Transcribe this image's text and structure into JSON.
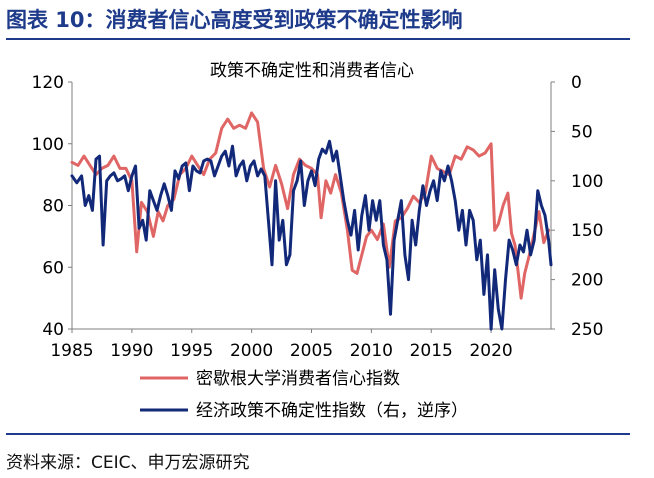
{
  "figure": {
    "title": "图表 10：消费者信心高度受到政策不确定性影响",
    "source": "资料来源：CEIC、申万宏源研究"
  },
  "chart_data": {
    "type": "line",
    "title": "政策不确定性和消费者信心",
    "x_ticks": [
      "1985",
      "1990",
      "1995",
      "2000",
      "2005",
      "2010",
      "2015",
      "2020"
    ],
    "xlim": [
      1985,
      2025
    ],
    "y_left": {
      "ylim": [
        40,
        120
      ],
      "ticks": [
        "40",
        "60",
        "80",
        "100",
        "120"
      ]
    },
    "y_right": {
      "ylim": [
        0,
        250
      ],
      "inverted": true,
      "ticks": [
        "0",
        "50",
        "100",
        "150",
        "200",
        "250"
      ]
    },
    "legend_position": "bottom",
    "series": [
      {
        "name": "密歇根大学消费者信心指数",
        "axis": "left",
        "color": "#e06666",
        "points": [
          [
            1985.0,
            94
          ],
          [
            1985.5,
            93
          ],
          [
            1986.0,
            96
          ],
          [
            1986.5,
            93
          ],
          [
            1987.0,
            90
          ],
          [
            1987.5,
            92
          ],
          [
            1988.0,
            93
          ],
          [
            1988.5,
            96
          ],
          [
            1989.0,
            92
          ],
          [
            1989.5,
            92
          ],
          [
            1990.0,
            88
          ],
          [
            1990.4,
            65
          ],
          [
            1990.8,
            81
          ],
          [
            1991.3,
            78
          ],
          [
            1991.8,
            70
          ],
          [
            1992.2,
            78
          ],
          [
            1992.6,
            75
          ],
          [
            1993.0,
            80
          ],
          [
            1993.5,
            82
          ],
          [
            1994.0,
            90
          ],
          [
            1994.5,
            92
          ],
          [
            1995.0,
            96
          ],
          [
            1995.5,
            93
          ],
          [
            1996.0,
            90
          ],
          [
            1996.5,
            95
          ],
          [
            1997.0,
            97
          ],
          [
            1997.5,
            105
          ],
          [
            1998.0,
            108
          ],
          [
            1998.5,
            105
          ],
          [
            1999.0,
            106
          ],
          [
            1999.5,
            105
          ],
          [
            2000.0,
            110
          ],
          [
            2000.5,
            107
          ],
          [
            2001.0,
            92
          ],
          [
            2001.5,
            86
          ],
          [
            2002.0,
            93
          ],
          [
            2002.5,
            87
          ],
          [
            2003.0,
            79
          ],
          [
            2003.5,
            90
          ],
          [
            2004.0,
            95
          ],
          [
            2004.5,
            93
          ],
          [
            2005.0,
            92
          ],
          [
            2005.5,
            90
          ],
          [
            2005.8,
            76
          ],
          [
            2006.2,
            88
          ],
          [
            2006.6,
            84
          ],
          [
            2007.0,
            90
          ],
          [
            2007.5,
            84
          ],
          [
            2008.0,
            72
          ],
          [
            2008.4,
            59
          ],
          [
            2008.8,
            58
          ],
          [
            2009.2,
            64
          ],
          [
            2009.6,
            70
          ],
          [
            2010.0,
            72
          ],
          [
            2010.5,
            69
          ],
          [
            2011.0,
            74
          ],
          [
            2011.5,
            60
          ],
          [
            2012.0,
            75
          ],
          [
            2012.5,
            76
          ],
          [
            2013.0,
            79
          ],
          [
            2013.5,
            83
          ],
          [
            2014.0,
            81
          ],
          [
            2014.5,
            84
          ],
          [
            2015.0,
            96
          ],
          [
            2015.5,
            92
          ],
          [
            2016.0,
            91
          ],
          [
            2016.5,
            90
          ],
          [
            2017.0,
            96
          ],
          [
            2017.5,
            95
          ],
          [
            2018.0,
            99
          ],
          [
            2018.5,
            98
          ],
          [
            2019.0,
            96
          ],
          [
            2019.5,
            97
          ],
          [
            2020.0,
            100
          ],
          [
            2020.3,
            72
          ],
          [
            2020.6,
            74
          ],
          [
            2021.0,
            80
          ],
          [
            2021.4,
            84
          ],
          [
            2021.7,
            71
          ],
          [
            2022.0,
            67
          ],
          [
            2022.5,
            50
          ],
          [
            2022.8,
            58
          ],
          [
            2023.2,
            64
          ],
          [
            2023.6,
            71
          ],
          [
            2024.0,
            78
          ],
          [
            2024.4,
            68
          ],
          [
            2024.8,
            72
          ]
        ]
      },
      {
        "name": "经济政策不确定性指数（右，逆序）",
        "axis": "right",
        "color": "#12297a",
        "points": [
          [
            1985.0,
            95
          ],
          [
            1985.4,
            102
          ],
          [
            1985.8,
            95
          ],
          [
            1986.1,
            125
          ],
          [
            1986.4,
            115
          ],
          [
            1986.7,
            130
          ],
          [
            1987.0,
            78
          ],
          [
            1987.3,
            75
          ],
          [
            1987.6,
            165
          ],
          [
            1987.9,
            100
          ],
          [
            1988.2,
            95
          ],
          [
            1988.5,
            92
          ],
          [
            1988.8,
            100
          ],
          [
            1989.1,
            98
          ],
          [
            1989.4,
            95
          ],
          [
            1989.7,
            110
          ],
          [
            1990.0,
            95
          ],
          [
            1990.3,
            85
          ],
          [
            1990.6,
            148
          ],
          [
            1990.9,
            140
          ],
          [
            1991.2,
            160
          ],
          [
            1991.5,
            110
          ],
          [
            1991.8,
            120
          ],
          [
            1992.1,
            130
          ],
          [
            1992.4,
            115
          ],
          [
            1992.7,
            103
          ],
          [
            1993.0,
            115
          ],
          [
            1993.3,
            130
          ],
          [
            1993.6,
            90
          ],
          [
            1993.9,
            98
          ],
          [
            1994.2,
            85
          ],
          [
            1994.5,
            82
          ],
          [
            1994.8,
            110
          ],
          [
            1995.1,
            85
          ],
          [
            1995.4,
            90
          ],
          [
            1995.7,
            92
          ],
          [
            1996.0,
            80
          ],
          [
            1996.3,
            78
          ],
          [
            1996.6,
            80
          ],
          [
            1996.9,
            95
          ],
          [
            1997.2,
            85
          ],
          [
            1997.5,
            75
          ],
          [
            1997.8,
            70
          ],
          [
            1998.1,
            85
          ],
          [
            1998.4,
            65
          ],
          [
            1998.7,
            95
          ],
          [
            1999.0,
            85
          ],
          [
            1999.3,
            80
          ],
          [
            1999.6,
            100
          ],
          [
            1999.9,
            85
          ],
          [
            2000.2,
            80
          ],
          [
            2000.5,
            95
          ],
          [
            2000.8,
            88
          ],
          [
            2001.1,
            95
          ],
          [
            2001.4,
            140
          ],
          [
            2001.7,
            185
          ],
          [
            2002.0,
            100
          ],
          [
            2002.3,
            160
          ],
          [
            2002.6,
            140
          ],
          [
            2002.9,
            185
          ],
          [
            2003.2,
            175
          ],
          [
            2003.5,
            110
          ],
          [
            2003.8,
            100
          ],
          [
            2004.1,
            80
          ],
          [
            2004.4,
            125
          ],
          [
            2004.7,
            100
          ],
          [
            2005.0,
            90
          ],
          [
            2005.3,
            105
          ],
          [
            2005.6,
            78
          ],
          [
            2005.9,
            68
          ],
          [
            2006.2,
            72
          ],
          [
            2006.5,
            60
          ],
          [
            2006.8,
            80
          ],
          [
            2007.1,
            70
          ],
          [
            2007.4,
            95
          ],
          [
            2007.7,
            120
          ],
          [
            2008.0,
            140
          ],
          [
            2008.3,
            155
          ],
          [
            2008.6,
            130
          ],
          [
            2008.9,
            170
          ],
          [
            2009.2,
            135
          ],
          [
            2009.5,
            115
          ],
          [
            2009.8,
            150
          ],
          [
            2010.1,
            120
          ],
          [
            2010.4,
            140
          ],
          [
            2010.7,
            120
          ],
          [
            2011.0,
            165
          ],
          [
            2011.3,
            180
          ],
          [
            2011.6,
            235
          ],
          [
            2011.9,
            160
          ],
          [
            2012.2,
            140
          ],
          [
            2012.5,
            120
          ],
          [
            2012.8,
            175
          ],
          [
            2013.1,
            200
          ],
          [
            2013.4,
            140
          ],
          [
            2013.7,
            165
          ],
          [
            2014.0,
            130
          ],
          [
            2014.3,
            105
          ],
          [
            2014.6,
            125
          ],
          [
            2014.9,
            110
          ],
          [
            2015.2,
            100
          ],
          [
            2015.5,
            120
          ],
          [
            2015.8,
            90
          ],
          [
            2016.1,
            100
          ],
          [
            2016.4,
            85
          ],
          [
            2016.7,
            100
          ],
          [
            2017.0,
            120
          ],
          [
            2017.3,
            150
          ],
          [
            2017.6,
            130
          ],
          [
            2017.9,
            165
          ],
          [
            2018.2,
            130
          ],
          [
            2018.5,
            140
          ],
          [
            2018.8,
            180
          ],
          [
            2019.1,
            160
          ],
          [
            2019.4,
            215
          ],
          [
            2019.7,
            175
          ],
          [
            2020.0,
            250
          ],
          [
            2020.3,
            190
          ],
          [
            2020.6,
            230
          ],
          [
            2020.9,
            250
          ],
          [
            2021.2,
            200
          ],
          [
            2021.5,
            160
          ],
          [
            2021.8,
            170
          ],
          [
            2022.1,
            185
          ],
          [
            2022.4,
            165
          ],
          [
            2022.7,
            172
          ],
          [
            2023.0,
            150
          ],
          [
            2023.3,
            175
          ],
          [
            2023.6,
            160
          ],
          [
            2023.9,
            110
          ],
          [
            2024.2,
            125
          ],
          [
            2024.5,
            135
          ],
          [
            2024.8,
            160
          ],
          [
            2025.0,
            185
          ]
        ]
      }
    ]
  }
}
